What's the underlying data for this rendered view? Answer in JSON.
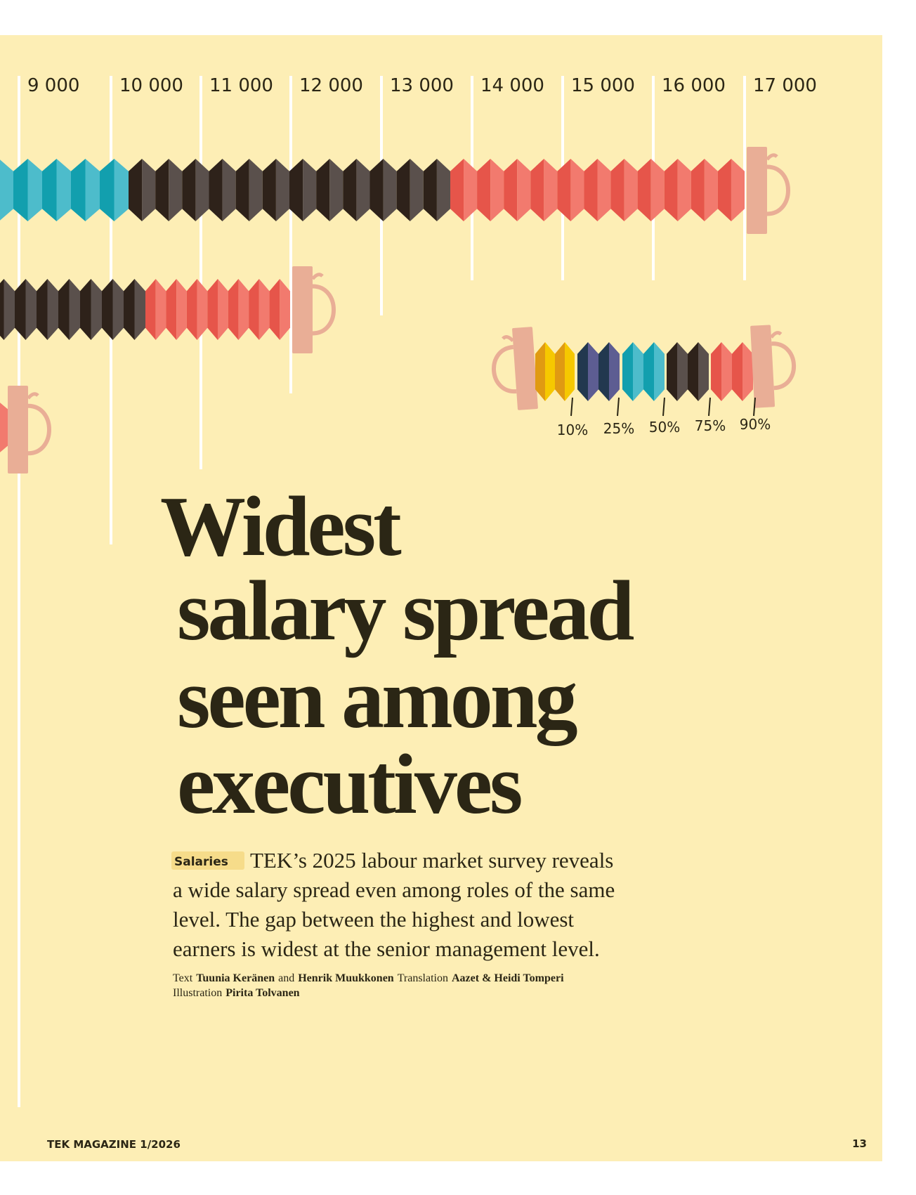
{
  "axis": {
    "ticks": [
      "9 000",
      "10 000",
      "11 000",
      "12 000",
      "13 000",
      "14 000",
      "15 000",
      "16 000",
      "17 000"
    ]
  },
  "legend": {
    "labels": [
      "10%",
      "25%",
      "50%",
      "75%",
      "90%"
    ]
  },
  "headline": {
    "lines": [
      "Widest",
      "salary spread",
      "seen among",
      "executives"
    ]
  },
  "intro": {
    "tag": "Salaries",
    "lines": [
      "TEK’s 2025 labour market survey reveals",
      "a wide salary spread even among roles of the same",
      "level. The gap between the highest and lowest",
      "earners is widest at the senior management level."
    ]
  },
  "credits": {
    "lines": [
      [
        {
          "text": "Text"
        },
        {
          "text": "Tuunia Keränen",
          "bold": true
        },
        {
          "text": "and"
        },
        {
          "text": "Henrik Muukkonen",
          "bold": true
        },
        {
          "text": "Translation"
        },
        {
          "text": "Aazet & Heidi Tomperi",
          "bold": true
        }
      ],
      [
        {
          "text": "Illustration"
        },
        {
          "text": "Pirita Tolvanen",
          "bold": true
        }
      ]
    ]
  },
  "footer": {
    "magazine": "TEK MAGAZINE 1/2026",
    "page": "13"
  }
}
